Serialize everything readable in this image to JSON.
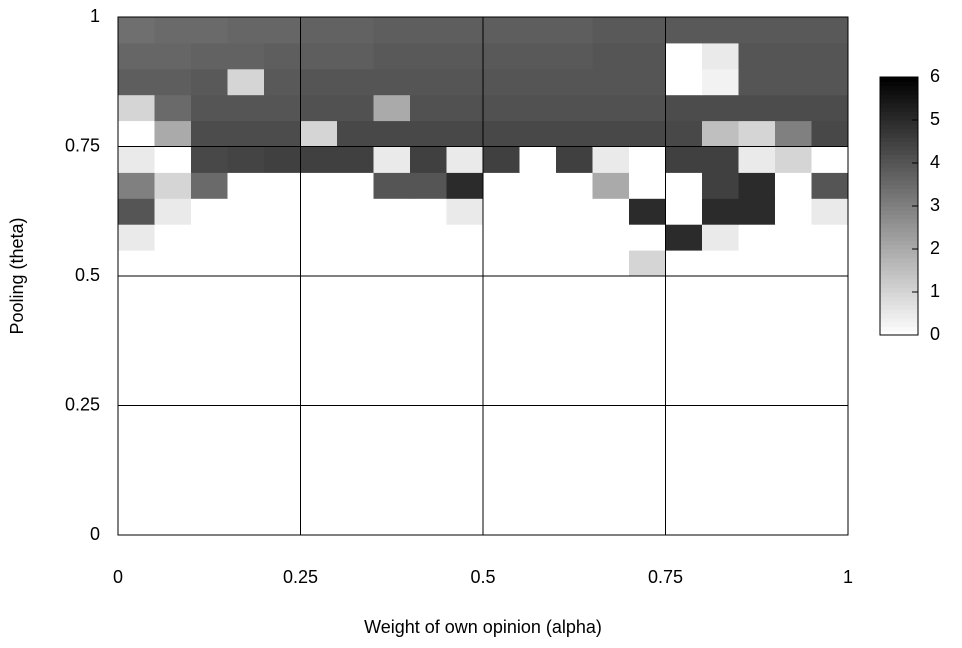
{
  "chart_data": {
    "type": "heatmap",
    "xlabel": "Weight of own opinion (alpha)",
    "ylabel": "Pooling (theta)",
    "x": [
      0.025,
      0.075,
      0.125,
      0.175,
      0.225,
      0.275,
      0.325,
      0.375,
      0.425,
      0.475,
      0.525,
      0.575,
      0.625,
      0.675,
      0.725,
      0.775,
      0.825,
      0.875,
      0.925,
      0.975
    ],
    "y": [
      0.025,
      0.075,
      0.125,
      0.175,
      0.225,
      0.275,
      0.325,
      0.375,
      0.425,
      0.475,
      0.525,
      0.575,
      0.625,
      0.675,
      0.725,
      0.775,
      0.825,
      0.875,
      0.925,
      0.975
    ],
    "z": [
      [
        0,
        0,
        0,
        0,
        0,
        0,
        0,
        0,
        0,
        0,
        0,
        0,
        0,
        0,
        0,
        0,
        0,
        0,
        0,
        0
      ],
      [
        0,
        0,
        0,
        0,
        0,
        0,
        0,
        0,
        0,
        0,
        0,
        0,
        0,
        0,
        0,
        0,
        0,
        0,
        0,
        0
      ],
      [
        0,
        0,
        0,
        0,
        0,
        0,
        0,
        0,
        0,
        0,
        0,
        0,
        0,
        0,
        0,
        0,
        0,
        0,
        0,
        0
      ],
      [
        0,
        0,
        0,
        0,
        0,
        0,
        0,
        0,
        0,
        0,
        0,
        0,
        0,
        0,
        0,
        0,
        0,
        0,
        0,
        0
      ],
      [
        0,
        0,
        0,
        0,
        0,
        0,
        0,
        0,
        0,
        0,
        0,
        0,
        0,
        0,
        0,
        0,
        0,
        0,
        0,
        0
      ],
      [
        0,
        0,
        0,
        0,
        0,
        0,
        0,
        0,
        0,
        0,
        0,
        0,
        0,
        0,
        0,
        0,
        0,
        0,
        0,
        0
      ],
      [
        0,
        0,
        0,
        0,
        0,
        0,
        0,
        0,
        0,
        0,
        0,
        0,
        0,
        0,
        0,
        0,
        0,
        0,
        0,
        0
      ],
      [
        0,
        0,
        0,
        0,
        0,
        0,
        0,
        0,
        0,
        0,
        0,
        0,
        0,
        0,
        0,
        0,
        0,
        0,
        0,
        0
      ],
      [
        0,
        0,
        0,
        0,
        0,
        0,
        0,
        0,
        0,
        0,
        0,
        0,
        0,
        0,
        0,
        0,
        0,
        0,
        0,
        0
      ],
      [
        0,
        0,
        0,
        0,
        0,
        0,
        0,
        0,
        0,
        0,
        0,
        0,
        0,
        0,
        0,
        0,
        0,
        0,
        0,
        0
      ],
      [
        0,
        0,
        0,
        0,
        0,
        0,
        0,
        0,
        0,
        0,
        0,
        0,
        0,
        0,
        1,
        0,
        0,
        0,
        0,
        0
      ],
      [
        0.5,
        0,
        0,
        0,
        0,
        0,
        0,
        0,
        0,
        0,
        0,
        0,
        0,
        0,
        0,
        5,
        0.5,
        0,
        0,
        0
      ],
      [
        4,
        0.5,
        0,
        0,
        0,
        0,
        0,
        0,
        0,
        0.5,
        0,
        0,
        0,
        0,
        5,
        0,
        5,
        5,
        0,
        0.5
      ],
      [
        3,
        1,
        3.5,
        0,
        0,
        0,
        0,
        4,
        4,
        5,
        0,
        0,
        0,
        2,
        0,
        0,
        4.5,
        5,
        0,
        4
      ],
      [
        0.5,
        0,
        4.3,
        4.4,
        4.5,
        4.5,
        4.5,
        0.5,
        4.5,
        0.5,
        4.5,
        0,
        4.5,
        0.5,
        0,
        4.5,
        4.5,
        0.5,
        1,
        0
      ],
      [
        0,
        2,
        4.2,
        4.2,
        4.2,
        1,
        4.3,
        4.3,
        4.3,
        4.3,
        4.3,
        4.3,
        4.3,
        4.3,
        4.3,
        4.3,
        1.5,
        1,
        3,
        4.3
      ],
      [
        1,
        3.5,
        4,
        4,
        4,
        4.1,
        4.1,
        2,
        4.1,
        4.1,
        4.1,
        4.1,
        4.1,
        4.1,
        4.1,
        4.2,
        4.2,
        4.2,
        4.2,
        4.2
      ],
      [
        3.8,
        3.8,
        3.9,
        1,
        3.9,
        4,
        4,
        4,
        4,
        4,
        4,
        4,
        4,
        4,
        4,
        0,
        0.3,
        4,
        4,
        4
      ],
      [
        3.6,
        3.6,
        3.7,
        3.7,
        3.8,
        3.8,
        3.8,
        3.9,
        3.9,
        3.9,
        3.9,
        3.9,
        3.9,
        4,
        4,
        0,
        0.5,
        4,
        4,
        4
      ],
      [
        3.4,
        3.5,
        3.5,
        3.6,
        3.6,
        3.7,
        3.7,
        3.8,
        3.8,
        3.8,
        3.8,
        3.8,
        3.8,
        3.9,
        3.9,
        3.9,
        3.9,
        3.9,
        3.9,
        3.9
      ]
    ],
    "xlim": [
      0,
      1
    ],
    "xticks": [
      0,
      0.25,
      0.5,
      0.75,
      1
    ],
    "ylim": [
      0,
      1
    ],
    "yticks": [
      0,
      0.25,
      0.5,
      0.75,
      1
    ],
    "zlim": [
      0,
      6
    ],
    "zticks": [
      0,
      1,
      2,
      3,
      4,
      5,
      6
    ],
    "colorscale": [
      "#ffffff",
      "#000000"
    ],
    "grid": true
  }
}
